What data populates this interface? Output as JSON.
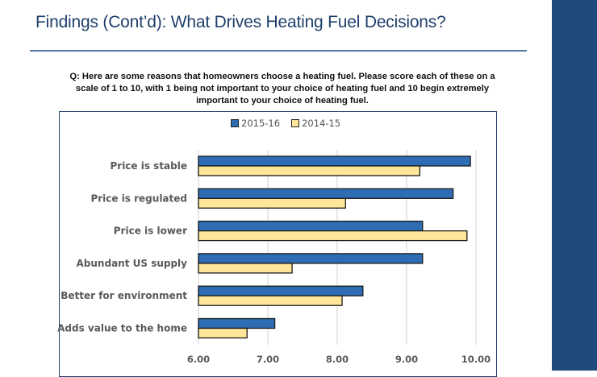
{
  "slide": {
    "title": "Findings (Cont’d): What Drives Heating Fuel Decisions?",
    "question": "Q: Here are some reasons that homeowners choose a heating fuel. Please score each of these on a scale of 1 to 10, with 1 being not important to your choice of heating fuel and 10 begin extremely important to your choice of heating fuel.",
    "accent_color": "#1f4a7c"
  },
  "chart_data": {
    "type": "bar",
    "orientation": "horizontal",
    "title": "",
    "xlabel": "",
    "ylabel": "",
    "categories": [
      "Price is stable",
      "Price is regulated",
      "Price is lower",
      "Abundant US supply",
      "Better for environment",
      "Adds value to the home"
    ],
    "series": [
      {
        "name": "2015-16",
        "color": "#2e6db4",
        "values": [
          9.92,
          9.67,
          9.23,
          9.23,
          8.37,
          7.1
        ]
      },
      {
        "name": "2014-15",
        "color": "#ffe699",
        "values": [
          9.19,
          8.12,
          9.87,
          7.35,
          8.07,
          6.7
        ]
      }
    ],
    "xlim": [
      6.0,
      10.0
    ],
    "ticks": [
      "6.00",
      "7.00",
      "8.00",
      "9.00",
      "10.00"
    ],
    "tick_values": [
      6,
      7,
      8,
      9,
      10
    ],
    "grid": true,
    "legend_position": "top"
  }
}
